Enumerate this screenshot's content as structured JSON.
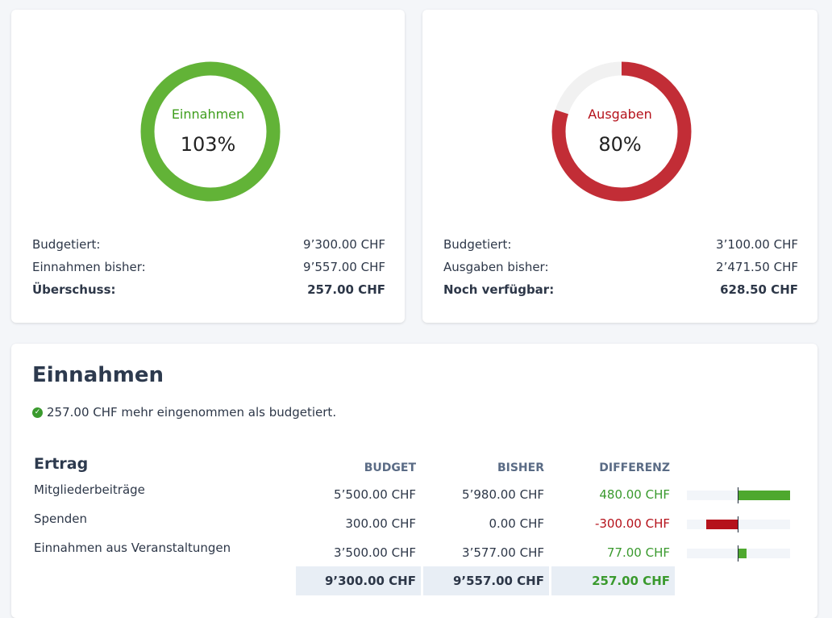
{
  "income_card": {
    "label": "Einnahmen",
    "percent_text": "103%",
    "percent": 103,
    "color": "#62b337",
    "rows": [
      {
        "label": "Budgetiert:",
        "value": "9’300.00 CHF"
      },
      {
        "label": "Einnahmen bisher:",
        "value": "9’557.00 CHF"
      },
      {
        "label": "Überschuss:",
        "value": "257.00 CHF"
      }
    ]
  },
  "expense_card": {
    "label": "Ausgaben",
    "percent_text": "80%",
    "percent": 80,
    "color": "#c22d36",
    "rows": [
      {
        "label": "Budgetiert:",
        "value": "3’100.00 CHF"
      },
      {
        "label": "Ausgaben bisher:",
        "value": "2’471.50 CHF"
      },
      {
        "label": "Noch verfügbar:",
        "value": "628.50 CHF"
      }
    ]
  },
  "section": {
    "title": "Einnahmen",
    "message": "257.00 CHF mehr eingenommen als budgetiert.",
    "group": "Ertrag",
    "headers": {
      "budget": "BUDGET",
      "bisher": "BISHER",
      "differenz": "DIFFERENZ"
    },
    "rows": [
      {
        "name": "Mitgliederbeiträge",
        "budget": "5’500.00 CHF",
        "bisher": "5’980.00 CHF",
        "diff": "480.00 CHF",
        "diff_value": 480
      },
      {
        "name": "Spenden",
        "budget": "300.00 CHF",
        "bisher": "0.00 CHF",
        "diff": "-300.00 CHF",
        "diff_value": -300
      },
      {
        "name": "Einnahmen aus Veranstaltungen",
        "budget": "3’500.00 CHF",
        "bisher": "3’577.00 CHF",
        "diff": "77.00 CHF",
        "diff_value": 77
      }
    ],
    "totals": {
      "budget": "9’300.00 CHF",
      "bisher": "9’557.00 CHF",
      "diff": "257.00 CHF"
    },
    "colors": {
      "positive": "#3a9a2e",
      "negative": "#b5121b",
      "bar_positive": "#4ea82e",
      "bar_negative": "#b5121b"
    }
  }
}
